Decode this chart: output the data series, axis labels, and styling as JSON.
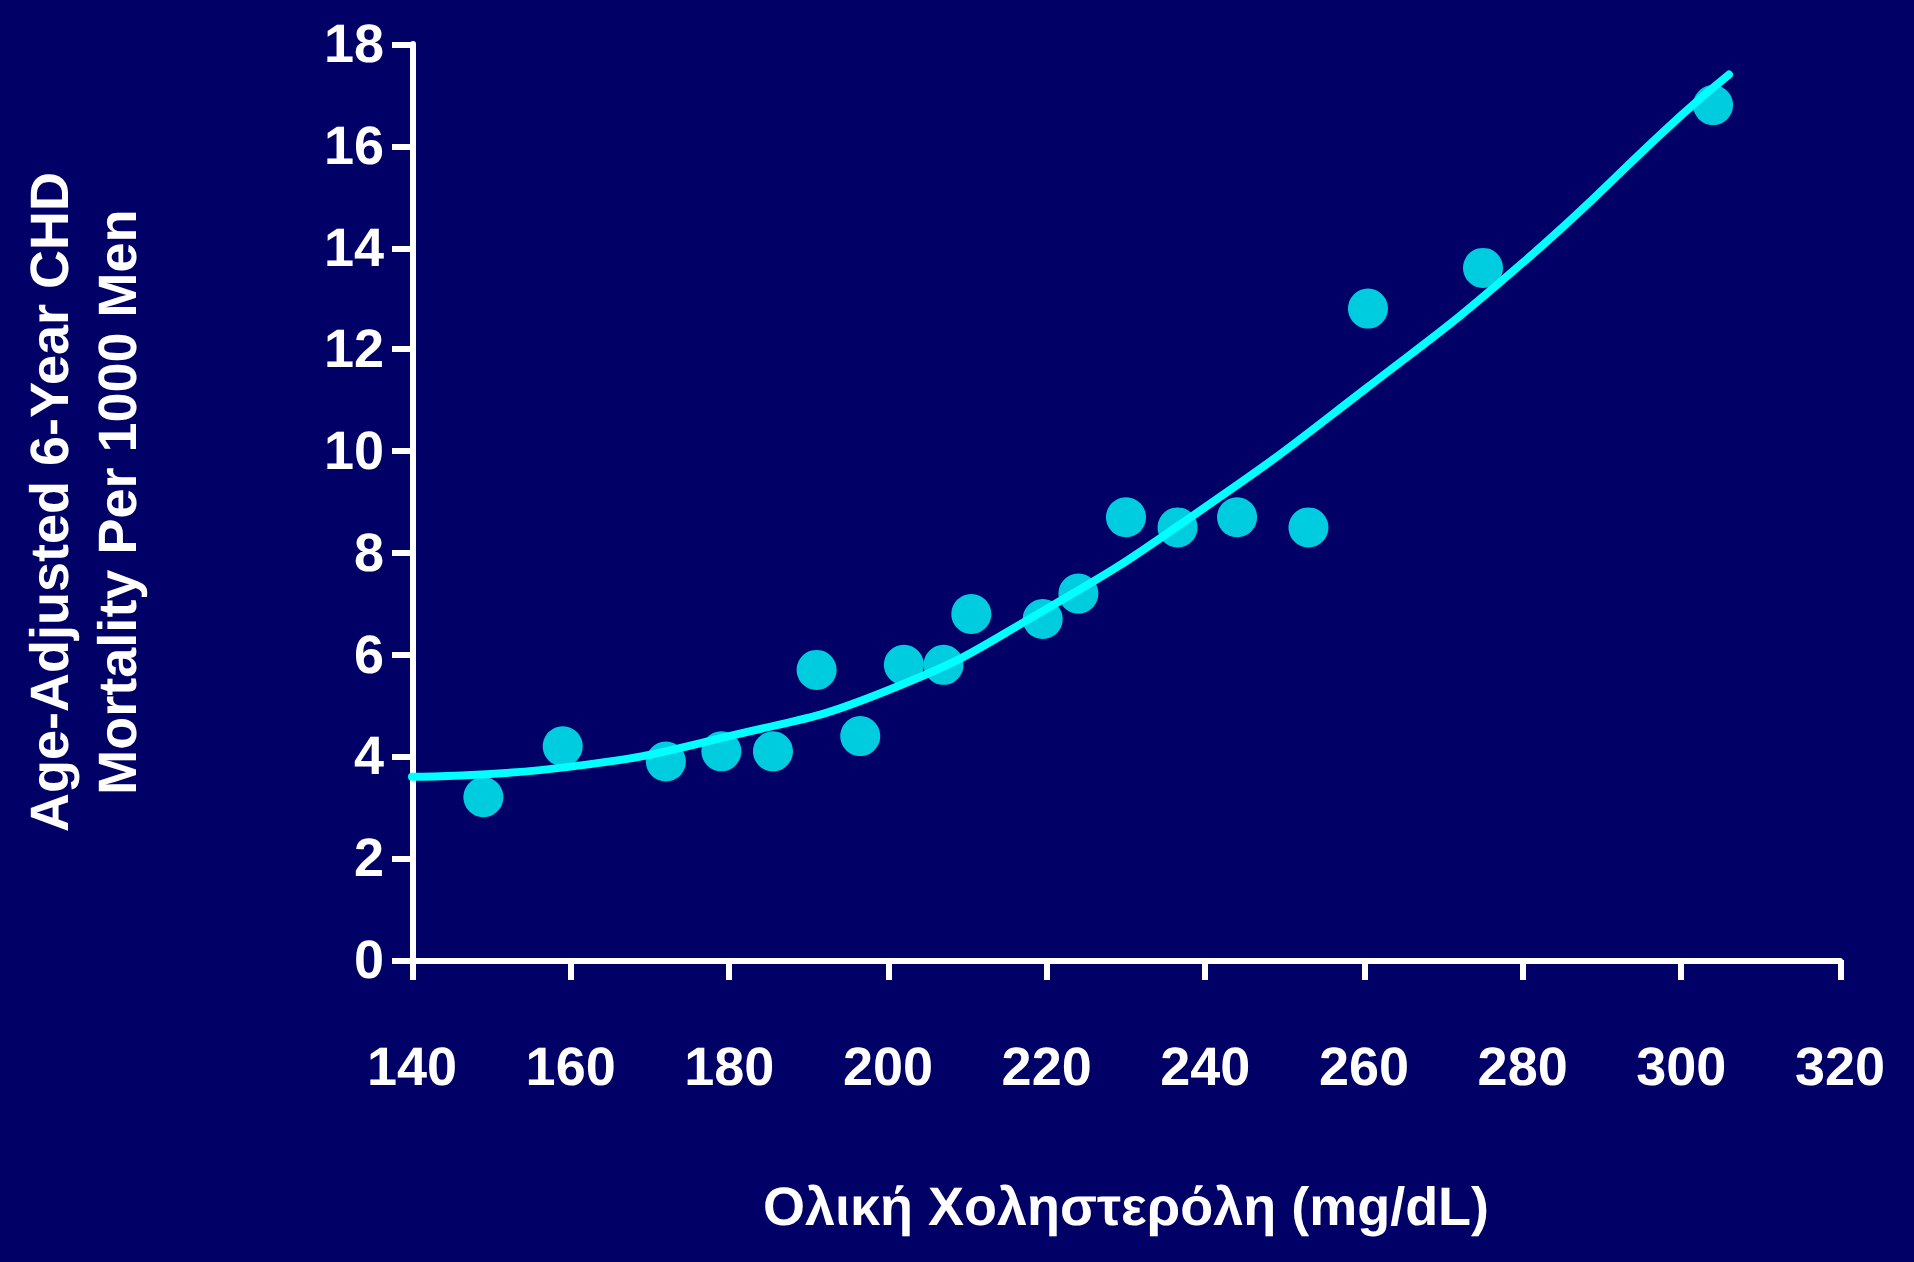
{
  "chart_data": {
    "type": "scatter",
    "xlabel": "Ολική Χοληστερόλη (mg/dL)",
    "ylabel": "Age-Adjusted 6-Year CHD\nMortality Per 1000 Men",
    "xlim": [
      140,
      320
    ],
    "xticks": [
      140,
      160,
      180,
      200,
      220,
      240,
      260,
      280,
      300,
      320
    ],
    "ylim": [
      0,
      18
    ],
    "yticks": [
      0,
      2,
      4,
      6,
      8,
      10,
      12,
      14,
      16,
      18
    ],
    "grid": false,
    "marker": "circle",
    "series": [
      {
        "color": "#00ffff",
        "x": [
          149,
          159,
          172,
          179,
          185.5,
          191,
          196.5,
          202,
          207,
          210.5,
          219.5,
          224,
          230,
          236.5,
          244,
          253,
          260.5,
          275,
          304
        ],
        "values": [
          3.2,
          4.2,
          3.9,
          4.1,
          4.1,
          5.7,
          4.4,
          5.8,
          5.8,
          6.8,
          6.7,
          7.2,
          8.7,
          8.5,
          8.7,
          8.5,
          12.8,
          13.6,
          16.8
        ]
      },
      {
        "type": "line",
        "color": "#00ffff",
        "marker": "none",
        "line_style": "solid",
        "x": [
          140,
          160,
          180,
          200,
          220,
          240,
          260,
          280,
          300,
          306
        ],
        "values": [
          3.6,
          3.8,
          4.4,
          5.3,
          6.9,
          8.9,
          11.2,
          13.7,
          16.6,
          17.4
        ]
      }
    ]
  }
}
